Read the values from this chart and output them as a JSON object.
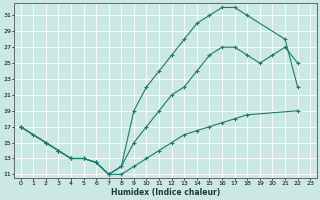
{
  "xlabel": "Humidex (Indice chaleur)",
  "bg_color": "#cce8e5",
  "grid_color": "#b0d8d4",
  "line_color": "#1a7a6e",
  "xlim": [
    -0.5,
    23.5
  ],
  "ylim": [
    10.5,
    32.5
  ],
  "xticks": [
    0,
    1,
    2,
    3,
    4,
    5,
    6,
    7,
    8,
    9,
    10,
    11,
    12,
    13,
    14,
    15,
    16,
    17,
    18,
    19,
    20,
    21,
    22,
    23
  ],
  "yticks": [
    11,
    13,
    15,
    17,
    19,
    21,
    23,
    25,
    27,
    29,
    31
  ],
  "curve_top_x": [
    0,
    2,
    3,
    4,
    5,
    6,
    7,
    8,
    9,
    10,
    11,
    12,
    13,
    14,
    15,
    16,
    17,
    18,
    21,
    22
  ],
  "curve_top_y": [
    17,
    15,
    14,
    13,
    13,
    12.5,
    11,
    12,
    19,
    22,
    24,
    26,
    28,
    30,
    31,
    32,
    32,
    31,
    28,
    22
  ],
  "curve_mid_x": [
    0,
    2,
    3,
    4,
    5,
    6,
    7,
    8,
    9,
    10,
    11,
    12,
    13,
    14,
    15,
    16,
    17,
    18,
    19,
    20,
    21,
    22
  ],
  "curve_mid_y": [
    17,
    15,
    14,
    13,
    13,
    12.5,
    11,
    12,
    15,
    17,
    19,
    21,
    22,
    24,
    26,
    27,
    27,
    26,
    25,
    26,
    27,
    25
  ],
  "curve_bot_x": [
    0,
    1,
    2,
    3,
    4,
    5,
    6,
    7,
    8,
    9,
    10,
    11,
    12,
    13,
    14,
    15,
    16,
    17,
    18,
    22
  ],
  "curve_bot_y": [
    17,
    16,
    15,
    14,
    13,
    13,
    12.5,
    11,
    11,
    12,
    13,
    14,
    15,
    16,
    16.5,
    17,
    17.5,
    18,
    18.5,
    19
  ]
}
